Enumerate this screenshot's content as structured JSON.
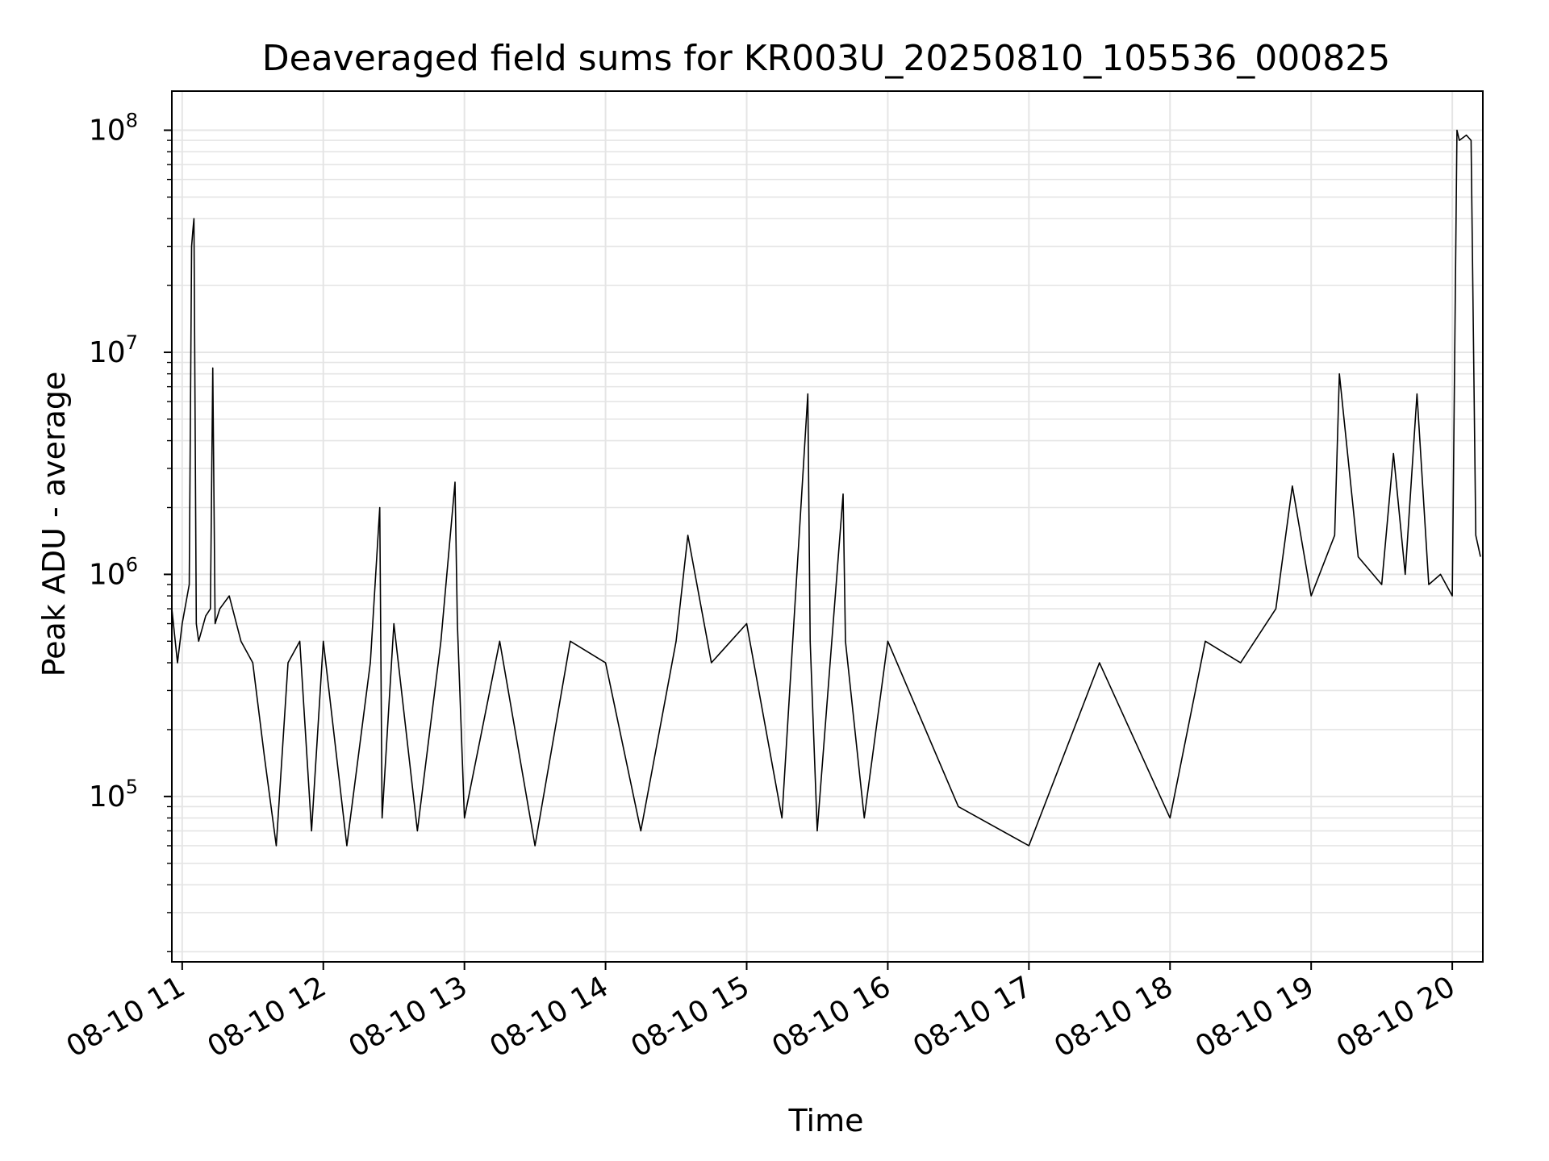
{
  "chart_data": {
    "type": "line",
    "title": "Deaveraged field sums for KR003U_20250810_105536_000825",
    "xlabel": "Time",
    "ylabel": "Peak ADU - average",
    "yscale": "log",
    "grid": true,
    "grid_color": "#e5e5e5",
    "line_color": "#000000",
    "xlim": [
      "2025-08-10 10:55:36",
      "2025-08-10 20:13:00"
    ],
    "ylim": [
      18000,
      150000000
    ],
    "x_ticks": [
      "08-10 11",
      "08-10 12",
      "08-10 13",
      "08-10 14",
      "08-10 15",
      "08-10 16",
      "08-10 17",
      "08-10 18",
      "08-10 19",
      "08-10 20"
    ],
    "y_ticks": [
      {
        "base": "10",
        "exp": "5",
        "value": 100000
      },
      {
        "base": "10",
        "exp": "6",
        "value": 1000000
      },
      {
        "base": "10",
        "exp": "7",
        "value": 10000000
      },
      {
        "base": "10",
        "exp": "8",
        "value": 100000000
      }
    ],
    "series": [
      {
        "x": [
          "2025-08-10 10:55:36",
          "2025-08-10 10:58",
          "2025-08-10 11:00",
          "2025-08-10 11:03",
          "2025-08-10 11:04",
          "2025-08-10 11:04:30",
          "2025-08-10 11:05",
          "2025-08-10 11:06",
          "2025-08-10 11:07",
          "2025-08-10 11:10",
          "2025-08-10 11:12",
          "2025-08-10 11:13",
          "2025-08-10 11:14",
          "2025-08-10 11:16",
          "2025-08-10 11:20",
          "2025-08-10 11:25",
          "2025-08-10 11:30",
          "2025-08-10 11:35",
          "2025-08-10 11:40",
          "2025-08-10 11:45",
          "2025-08-10 11:50",
          "2025-08-10 11:55",
          "2025-08-10 12:00",
          "2025-08-10 12:10",
          "2025-08-10 12:20",
          "2025-08-10 12:24",
          "2025-08-10 12:25",
          "2025-08-10 12:30",
          "2025-08-10 12:40",
          "2025-08-10 12:50",
          "2025-08-10 12:56",
          "2025-08-10 12:57",
          "2025-08-10 13:00",
          "2025-08-10 13:15",
          "2025-08-10 13:30",
          "2025-08-10 13:45",
          "2025-08-10 14:00",
          "2025-08-10 14:15",
          "2025-08-10 14:30",
          "2025-08-10 14:35",
          "2025-08-10 14:45",
          "2025-08-10 15:00",
          "2025-08-10 15:15",
          "2025-08-10 15:26",
          "2025-08-10 15:27",
          "2025-08-10 15:30",
          "2025-08-10 15:41",
          "2025-08-10 15:42",
          "2025-08-10 15:50",
          "2025-08-10 16:00",
          "2025-08-10 16:30",
          "2025-08-10 17:00",
          "2025-08-10 17:30",
          "2025-08-10 18:00",
          "2025-08-10 18:15",
          "2025-08-10 18:30",
          "2025-08-10 18:45",
          "2025-08-10 18:52",
          "2025-08-10 19:00",
          "2025-08-10 19:10",
          "2025-08-10 19:12",
          "2025-08-10 19:20",
          "2025-08-10 19:30",
          "2025-08-10 19:35",
          "2025-08-10 19:40",
          "2025-08-10 19:45",
          "2025-08-10 19:50",
          "2025-08-10 19:55",
          "2025-08-10 20:00",
          "2025-08-10 20:02",
          "2025-08-10 20:03",
          "2025-08-10 20:06",
          "2025-08-10 20:08",
          "2025-08-10 20:10",
          "2025-08-10 20:12"
        ],
        "y": [
          700000,
          400000,
          600000,
          900000,
          30000000,
          35000000,
          40000000,
          600000,
          500000,
          650000,
          700000,
          8500000,
          600000,
          700000,
          800000,
          500000,
          400000,
          150000,
          60000,
          400000,
          500000,
          70000,
          500000,
          60000,
          400000,
          2000000,
          80000,
          600000,
          70000,
          500000,
          2600000,
          600000,
          80000,
          500000,
          60000,
          500000,
          400000,
          70000,
          500000,
          1500000,
          400000,
          600000,
          80000,
          6500000,
          500000,
          70000,
          2300000,
          500000,
          80000,
          500000,
          90000,
          60000,
          400000,
          80000,
          500000,
          400000,
          700000,
          2500000,
          800000,
          1500000,
          8000000,
          1200000,
          900000,
          3500000,
          1000000,
          6500000,
          900000,
          1000000,
          800000,
          100000000,
          90000000,
          95000000,
          90000000,
          1500000,
          1200000
        ]
      }
    ]
  }
}
